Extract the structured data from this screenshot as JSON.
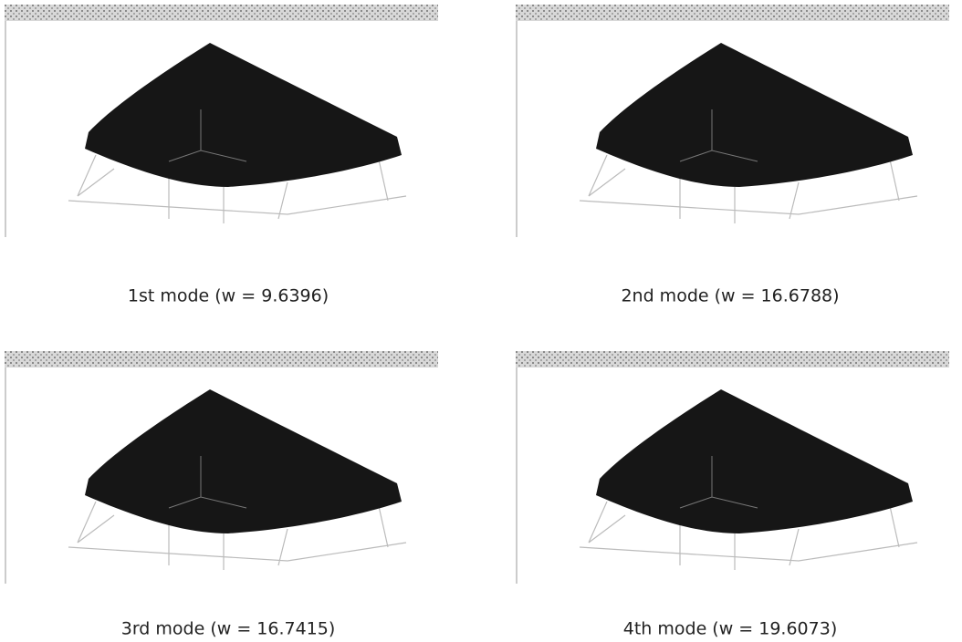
{
  "panels": [
    {
      "caption": "1st mode (w = 9.6396)"
    },
    {
      "caption": "2nd mode (w = 16.6788)"
    },
    {
      "caption": "3rd mode (w = 16.7415)"
    },
    {
      "caption": "4th mode (w = 19.6073)"
    }
  ]
}
